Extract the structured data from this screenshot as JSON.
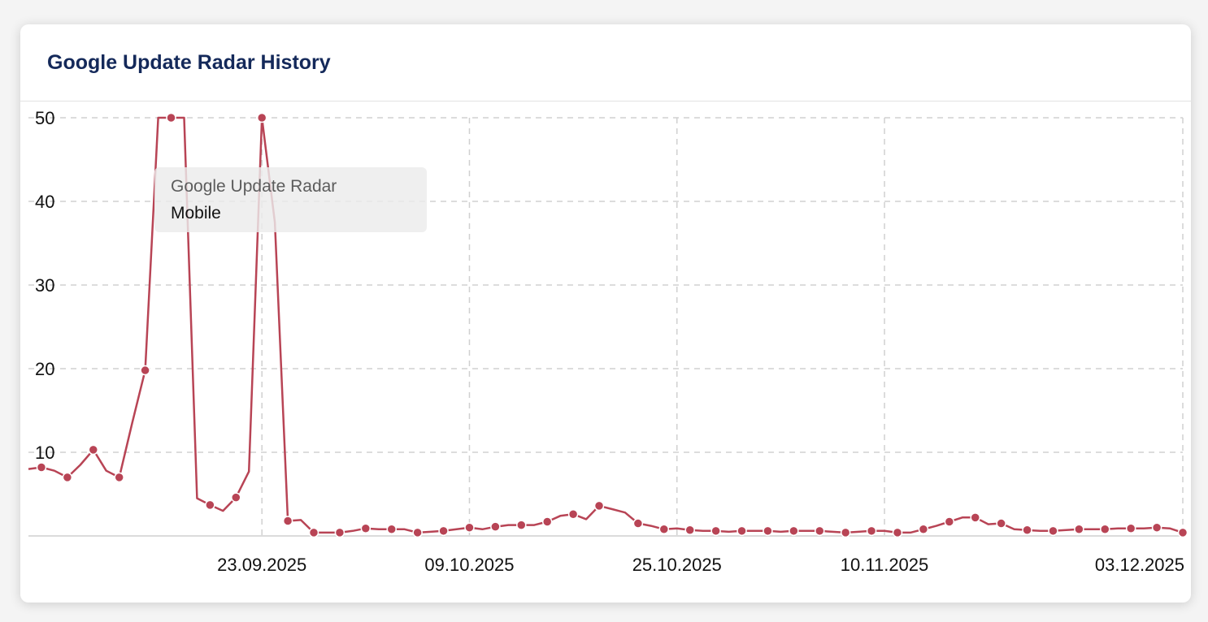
{
  "card": {
    "title": "Google Update Radar History"
  },
  "tooltip": {
    "title": "Google Update Radar",
    "series": "Mobile"
  },
  "colors": {
    "series": "#b84455",
    "grid": "#d0d0d0",
    "title": "#14295a"
  },
  "chart_data": {
    "type": "line",
    "ylim": [
      0,
      50
    ],
    "yticks": [
      10,
      20,
      30,
      40,
      50
    ],
    "xlim": [
      "2025-09-05",
      "2025-12-03"
    ],
    "xticks": [
      "2025-09-23",
      "2025-10-09",
      "2025-10-25",
      "2025-11-10",
      "2025-12-03"
    ],
    "xtick_labels": [
      "23.09.2025",
      "09.10.2025",
      "25.10.2025",
      "10.11.2025",
      "03.12.2025"
    ],
    "grid": true,
    "series": [
      {
        "x": [
          "2025-09-05",
          "2025-09-06",
          "2025-09-07",
          "2025-09-08",
          "2025-09-09",
          "2025-09-10",
          "2025-09-11",
          "2025-09-12",
          "2025-09-13",
          "2025-09-14",
          "2025-09-15",
          "2025-09-16",
          "2025-09-17",
          "2025-09-18",
          "2025-09-19",
          "2025-09-20",
          "2025-09-21",
          "2025-09-22",
          "2025-09-23",
          "2025-09-24",
          "2025-09-25",
          "2025-09-26",
          "2025-09-27",
          "2025-09-28",
          "2025-09-29",
          "2025-09-30",
          "2025-10-01",
          "2025-10-02",
          "2025-10-03",
          "2025-10-04",
          "2025-10-05",
          "2025-10-06",
          "2025-10-07",
          "2025-10-08",
          "2025-10-09",
          "2025-10-10",
          "2025-10-11",
          "2025-10-12",
          "2025-10-13",
          "2025-10-14",
          "2025-10-15",
          "2025-10-16",
          "2025-10-17",
          "2025-10-18",
          "2025-10-19",
          "2025-10-20",
          "2025-10-21",
          "2025-10-22",
          "2025-10-23",
          "2025-10-24",
          "2025-10-25",
          "2025-10-26",
          "2025-10-27",
          "2025-10-28",
          "2025-10-29",
          "2025-10-30",
          "2025-10-31",
          "2025-11-01",
          "2025-11-02",
          "2025-11-03",
          "2025-11-04",
          "2025-11-05",
          "2025-11-06",
          "2025-11-07",
          "2025-11-08",
          "2025-11-09",
          "2025-11-10",
          "2025-11-11",
          "2025-11-12",
          "2025-11-13",
          "2025-11-14",
          "2025-11-15",
          "2025-11-16",
          "2025-11-17",
          "2025-11-18",
          "2025-11-19",
          "2025-11-20",
          "2025-11-21",
          "2025-11-22",
          "2025-11-23",
          "2025-11-24",
          "2025-11-25",
          "2025-11-26",
          "2025-11-27",
          "2025-11-28",
          "2025-11-29",
          "2025-11-30",
          "2025-12-01",
          "2025-12-02",
          "2025-12-03"
        ],
        "values": [
          8.0,
          8.2,
          7.8,
          7.0,
          8.5,
          10.3,
          7.8,
          7.0,
          13.5,
          19.8,
          50,
          50,
          50,
          4.5,
          3.7,
          3.0,
          4.6,
          7.7,
          50,
          37.5,
          1.8,
          1.9,
          0.4,
          0.4,
          0.4,
          0.6,
          0.9,
          0.8,
          0.8,
          0.8,
          0.4,
          0.5,
          0.6,
          0.8,
          1.0,
          0.8,
          1.1,
          1.3,
          1.3,
          1.3,
          1.7,
          2.4,
          2.6,
          2.0,
          3.6,
          3.2,
          2.8,
          1.5,
          1.2,
          0.8,
          0.9,
          0.7,
          0.6,
          0.6,
          0.5,
          0.6,
          0.6,
          0.6,
          0.5,
          0.6,
          0.6,
          0.6,
          0.5,
          0.4,
          0.5,
          0.6,
          0.6,
          0.4,
          0.4,
          0.8,
          1.2,
          1.7,
          2.2,
          2.2,
          1.4,
          1.5,
          0.8,
          0.7,
          0.6,
          0.6,
          0.7,
          0.8,
          0.8,
          0.8,
          0.9,
          0.9,
          0.9,
          1.0,
          0.9,
          0.4
        ],
        "markers": [
          false,
          true,
          false,
          true,
          false,
          true,
          false,
          true,
          false,
          true,
          false,
          true,
          false,
          false,
          true,
          false,
          true,
          false,
          true,
          false,
          true,
          false,
          true,
          false,
          true,
          false,
          true,
          false,
          true,
          false,
          true,
          false,
          true,
          false,
          true,
          false,
          true,
          false,
          true,
          false,
          true,
          false,
          true,
          false,
          true,
          false,
          false,
          true,
          false,
          true,
          false,
          true,
          false,
          true,
          false,
          true,
          false,
          true,
          false,
          true,
          false,
          true,
          false,
          true,
          false,
          true,
          false,
          true,
          false,
          true,
          false,
          true,
          false,
          true,
          false,
          true,
          false,
          true,
          false,
          true,
          false,
          true,
          false,
          true,
          false,
          true,
          false,
          true,
          false,
          true
        ]
      }
    ]
  }
}
